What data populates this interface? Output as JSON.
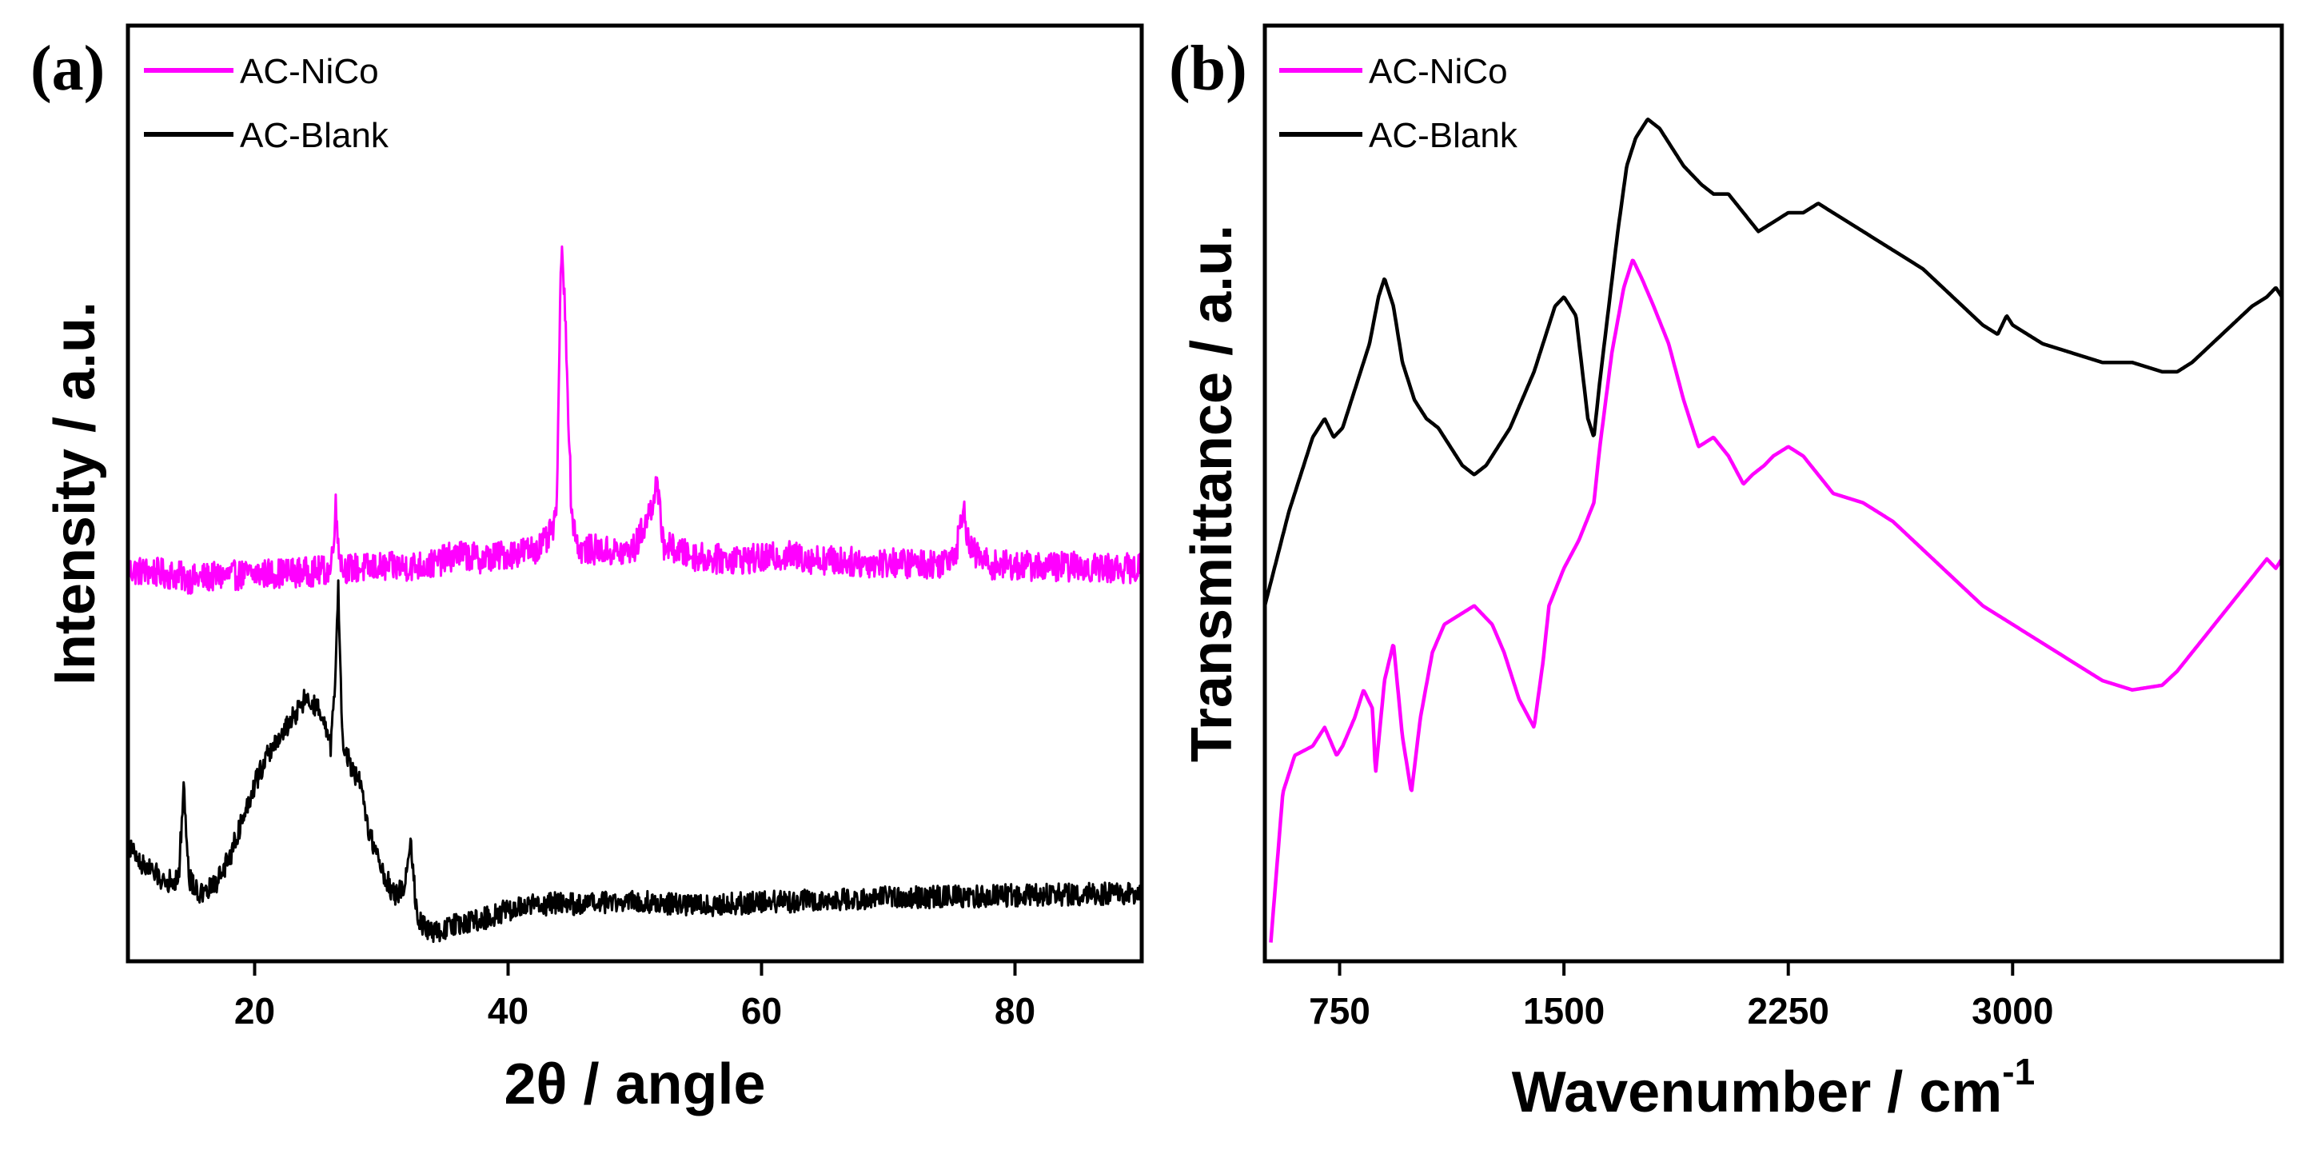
{
  "chart_data": [
    {
      "panel": "(a)",
      "type": "line",
      "title": "",
      "xlabel": "2θ / angle",
      "ylabel": "Intensity / a.u.",
      "xlim": [
        10,
        90
      ],
      "ylim": [
        0,
        100
      ],
      "xticks": [
        20,
        40,
        60,
        80
      ],
      "yticks_visible": false,
      "grid": false,
      "legend": {
        "position": "top-left",
        "entries": [
          "AC-NiCo",
          "AC-Blank"
        ]
      },
      "series": [
        {
          "name": "AC-NiCo",
          "color": "#ff00ff",
          "noise": 1.6,
          "x": [
            10,
            12,
            14,
            15,
            16,
            18,
            20,
            22,
            24,
            26,
            26.4,
            26.6,
            26.9,
            28,
            30,
            32,
            34,
            36,
            38,
            40,
            42,
            43,
            43.8,
            44.2,
            44.5,
            45,
            45.6,
            47,
            49,
            50,
            51.2,
            51.7,
            52.3,
            54,
            56,
            58,
            60,
            62,
            64,
            66,
            68,
            70,
            72,
            74,
            75.4,
            75.9,
            76.4,
            78,
            80,
            82,
            84,
            86,
            88,
            90
          ],
          "y": [
            41.8,
            41.6,
            41.2,
            40.8,
            41.0,
            41.2,
            41.4,
            41.5,
            41.6,
            41.8,
            48.5,
            45,
            42,
            42,
            42.1,
            42.2,
            42.4,
            43.5,
            43,
            43.5,
            44,
            44.8,
            47,
            76,
            70,
            48,
            44,
            44,
            43.6,
            44.2,
            48,
            51,
            44.5,
            43.5,
            43,
            43,
            43,
            43.4,
            43,
            42.8,
            42.6,
            42.6,
            42.5,
            42.5,
            44,
            49,
            44,
            42.4,
            42.3,
            42.2,
            42.2,
            42.1,
            42.0,
            42.0
          ]
        },
        {
          "name": "AC-Blank",
          "color": "#000000",
          "noise": 1.2,
          "x": [
            10,
            11,
            12,
            13,
            14,
            14.4,
            14.8,
            15.5,
            16,
            17,
            18,
            19,
            20,
            21,
            22,
            23,
            24,
            25,
            26,
            26.3,
            26.6,
            26.9,
            27.5,
            27.8,
            28.3,
            29,
            30,
            31,
            31.8,
            32.3,
            32.8,
            33.5,
            34,
            36,
            38,
            40,
            42,
            44,
            46,
            48,
            50,
            52,
            56,
            60,
            64,
            68,
            70,
            72,
            75.5,
            76,
            78,
            82,
            86,
            90
          ],
          "y": [
            12.5,
            10.5,
            9.5,
            8.5,
            8.8,
            19,
            9,
            7.5,
            7,
            8.5,
            11,
            15,
            19,
            22,
            24,
            26,
            28,
            27,
            23,
            28,
            40,
            24,
            21,
            20,
            19,
            14,
            10,
            7,
            8,
            13,
            5,
            3.5,
            3,
            4,
            4.5,
            5.5,
            6,
            6.2,
            6,
            6.3,
            6.5,
            6.2,
            6,
            6.3,
            6.5,
            6.6,
            7,
            6.8,
            7,
            6.9,
            7,
            7.1,
            7.2,
            7.3
          ]
        }
      ]
    },
    {
      "panel": "(b)",
      "type": "line",
      "title": "",
      "xlabel": "Wavenumber / cm",
      "xlabel_superscript": "-1",
      "ylabel": "Transmittance / a.u.",
      "xlim": [
        500,
        3900
      ],
      "ylim": [
        0,
        100
      ],
      "xticks": [
        750,
        1500,
        2250,
        3000
      ],
      "yticks_visible": false,
      "grid": false,
      "legend": {
        "position": "top-left",
        "entries": [
          "AC-NiCo",
          "AC-Blank"
        ]
      },
      "series": [
        {
          "name": "AC-NiCo",
          "color": "#ff00ff",
          "noise": 0,
          "x": [
            520,
            560,
            600,
            660,
            700,
            740,
            760,
            800,
            830,
            860,
            870,
            900,
            930,
            960,
            990,
            1020,
            1060,
            1100,
            1150,
            1200,
            1260,
            1300,
            1350,
            1400,
            1430,
            1450,
            1500,
            1550,
            1600,
            1620,
            1640,
            1660,
            1700,
            1730,
            1760,
            1800,
            1850,
            1900,
            1950,
            2000,
            2050,
            2100,
            2130,
            2170,
            2200,
            2250,
            2300,
            2350,
            2400,
            2500,
            2600,
            2700,
            2800,
            2900,
            3000,
            3100,
            3200,
            3300,
            3400,
            3500,
            3550,
            3600,
            3700,
            3800,
            3850,
            3880,
            3900
          ],
          "y": [
            2,
            18,
            22,
            23,
            25,
            22,
            23,
            26,
            29,
            27,
            20,
            30,
            34,
            24,
            18,
            26,
            33,
            36,
            37,
            38,
            36,
            33,
            28,
            25,
            32,
            38,
            42,
            45,
            49,
            55,
            60,
            65,
            72,
            75,
            73,
            70,
            66,
            60,
            55,
            56,
            54,
            51,
            52,
            53,
            54,
            55,
            54,
            52,
            50,
            49,
            47,
            44,
            41,
            38,
            36,
            34,
            32,
            30,
            29,
            29.5,
            31,
            33,
            37,
            41,
            43,
            42,
            43
          ]
        },
        {
          "name": "AC-Blank",
          "color": "#000000",
          "noise": 0,
          "x": [
            500,
            540,
            580,
            620,
            660,
            700,
            730,
            760,
            790,
            820,
            850,
            880,
            900,
            930,
            960,
            1000,
            1040,
            1080,
            1120,
            1160,
            1200,
            1240,
            1280,
            1320,
            1360,
            1400,
            1440,
            1470,
            1500,
            1540,
            1580,
            1600,
            1620,
            1650,
            1680,
            1710,
            1740,
            1780,
            1820,
            1860,
            1900,
            1960,
            2000,
            2050,
            2100,
            2150,
            2200,
            2250,
            2300,
            2350,
            2400,
            2500,
            2600,
            2700,
            2800,
            2900,
            2950,
            2980,
            3000,
            3050,
            3100,
            3200,
            3300,
            3400,
            3500,
            3550,
            3600,
            3700,
            3800,
            3850,
            3880,
            3900
          ],
          "y": [
            38,
            43,
            48,
            52,
            56,
            58,
            56,
            57,
            60,
            63,
            66,
            71,
            73,
            70,
            64,
            60,
            58,
            57,
            55,
            53,
            52,
            53,
            55,
            57,
            60,
            63,
            67,
            70,
            71,
            69,
            58,
            56,
            62,
            70,
            78,
            85,
            88,
            90,
            89,
            87,
            85,
            83,
            82,
            82,
            80,
            78,
            79,
            80,
            80,
            81,
            80,
            78,
            76,
            74,
            71,
            68,
            67,
            69,
            68,
            67,
            66,
            65,
            64,
            64,
            63,
            63,
            64,
            67,
            70,
            71,
            72,
            71
          ]
        }
      ]
    }
  ],
  "panels": [
    {
      "label": "(a)"
    },
    {
      "label": "(b)"
    }
  ]
}
